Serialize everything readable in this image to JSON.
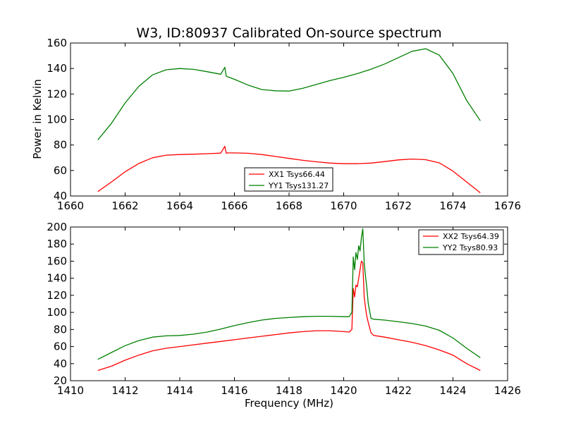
{
  "chart_data": [
    {
      "type": "line",
      "title": "W3, ID:80937 Calibrated On-source spectrum",
      "xlabel": "",
      "ylabel": "Power in Kelvin",
      "xlim": [
        1660,
        1676
      ],
      "ylim": [
        40,
        160
      ],
      "xticks": [
        1660,
        1662,
        1664,
        1666,
        1668,
        1670,
        1672,
        1674,
        1676
      ],
      "yticks": [
        40,
        60,
        80,
        100,
        120,
        140,
        160
      ],
      "legend_position": "lower-center",
      "grid": false,
      "series": [
        {
          "name": "XX1 Tsys66.44",
          "color": "#ff0000",
          "x": [
            1661.0,
            1661.5,
            1662.0,
            1662.5,
            1663.0,
            1663.5,
            1664.0,
            1664.5,
            1665.0,
            1665.5,
            1665.65,
            1665.7,
            1665.75,
            1666.0,
            1666.5,
            1667.0,
            1667.5,
            1668.0,
            1668.5,
            1669.0,
            1669.5,
            1670.0,
            1670.5,
            1671.0,
            1671.5,
            1672.0,
            1672.5,
            1673.0,
            1673.5,
            1674.0,
            1674.5,
            1675.0
          ],
          "y": [
            43.5,
            51,
            59,
            65.5,
            70,
            72,
            72.5,
            72.8,
            73.2,
            73.6,
            79,
            73.5,
            73.8,
            73.8,
            73.5,
            72.5,
            71,
            69.5,
            68,
            66.8,
            65.8,
            65.3,
            65.3,
            65.8,
            67,
            68.3,
            69,
            68.5,
            66,
            59.5,
            51,
            42.5
          ]
        },
        {
          "name": "YY1 Tsys131.27",
          "color": "#008000",
          "x": [
            1661.0,
            1661.5,
            1662.0,
            1662.5,
            1663.0,
            1663.5,
            1664.0,
            1664.5,
            1665.0,
            1665.5,
            1665.65,
            1665.7,
            1665.75,
            1666.0,
            1666.5,
            1667.0,
            1667.5,
            1668.0,
            1668.5,
            1669.0,
            1669.5,
            1670.0,
            1670.5,
            1671.0,
            1671.5,
            1672.0,
            1672.5,
            1673.0,
            1673.5,
            1674.0,
            1674.5,
            1675.0
          ],
          "y": [
            84,
            97,
            113,
            126,
            135,
            139,
            140,
            139.3,
            137.5,
            135.5,
            141,
            134,
            133.5,
            131.5,
            127,
            123.5,
            122.5,
            122.3,
            124.5,
            127.5,
            130.5,
            133,
            136,
            139.5,
            143.5,
            148.5,
            153.5,
            155.5,
            150.5,
            136,
            115,
            99
          ]
        }
      ]
    },
    {
      "type": "line",
      "title": "",
      "xlabel": "Frequency (MHz)",
      "ylabel": "",
      "xlim": [
        1410,
        1426
      ],
      "ylim": [
        20,
        200
      ],
      "xticks": [
        1410,
        1412,
        1414,
        1416,
        1418,
        1420,
        1422,
        1424,
        1426
      ],
      "yticks": [
        20,
        40,
        60,
        80,
        100,
        120,
        140,
        160,
        180,
        200
      ],
      "legend_position": "top-right",
      "grid": false,
      "series": [
        {
          "name": "XX2 Tsys64.39",
          "color": "#ff0000",
          "x": [
            1411.0,
            1411.5,
            1412.0,
            1412.5,
            1413.0,
            1413.5,
            1414.0,
            1414.5,
            1415.0,
            1415.5,
            1416.0,
            1416.5,
            1417.0,
            1417.5,
            1418.0,
            1418.5,
            1419.0,
            1419.5,
            1420.0,
            1420.2,
            1420.3,
            1420.35,
            1420.4,
            1420.45,
            1420.5,
            1420.55,
            1420.6,
            1420.65,
            1420.7,
            1420.75,
            1420.8,
            1420.85,
            1420.9,
            1421.0,
            1421.1,
            1421.5,
            1422.0,
            1422.5,
            1423.0,
            1423.5,
            1424.0,
            1424.5,
            1425.0
          ],
          "y": [
            32,
            37,
            44,
            50,
            55,
            58,
            60,
            62,
            64,
            66,
            68,
            70,
            72,
            74,
            76,
            77.5,
            78.5,
            78.5,
            77.5,
            77,
            80,
            128,
            118,
            132,
            130,
            140,
            150,
            160,
            158,
            118,
            105,
            95,
            88,
            76,
            73,
            71,
            68,
            65,
            61,
            56,
            50,
            40,
            32
          ]
        },
        {
          "name": "YY2 Tsys80.93",
          "color": "#008000",
          "x": [
            1411.0,
            1411.5,
            1412.0,
            1412.5,
            1413.0,
            1413.5,
            1414.0,
            1414.5,
            1415.0,
            1415.5,
            1416.0,
            1416.5,
            1417.0,
            1417.5,
            1418.0,
            1418.5,
            1419.0,
            1419.5,
            1420.0,
            1420.2,
            1420.3,
            1420.35,
            1420.4,
            1420.45,
            1420.5,
            1420.55,
            1420.6,
            1420.65,
            1420.7,
            1420.75,
            1420.8,
            1420.85,
            1420.9,
            1421.0,
            1421.1,
            1421.5,
            1422.0,
            1422.5,
            1423.0,
            1423.5,
            1424.0,
            1424.5,
            1425.0
          ],
          "y": [
            45,
            53,
            61,
            67,
            71,
            72.5,
            73,
            74.5,
            77,
            80.5,
            84.5,
            88,
            91,
            93,
            94,
            95,
            95.5,
            95.5,
            95,
            95,
            100,
            165,
            150,
            170,
            162,
            178,
            172,
            188,
            198,
            158,
            142,
            128,
            110,
            93,
            92,
            91,
            89,
            87,
            84,
            79,
            70,
            58,
            47
          ]
        }
      ]
    }
  ]
}
